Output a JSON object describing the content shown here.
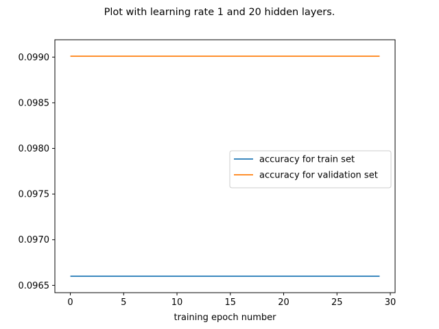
{
  "chart_data": {
    "type": "line",
    "title": "Plot with learning rate 1 and 20 hidden layers.",
    "xlabel": "training epoch number",
    "ylabel": "",
    "xlim": [
      -1.45,
      30.45
    ],
    "ylim": [
      0.09642,
      0.09919
    ],
    "x_ticks": [
      0,
      5,
      10,
      15,
      20,
      25,
      30
    ],
    "x_tick_labels": [
      "0",
      "5",
      "10",
      "15",
      "20",
      "25",
      "30"
    ],
    "y_ticks": [
      0.0965,
      0.097,
      0.0975,
      0.098,
      0.0985,
      0.099
    ],
    "y_tick_labels": [
      "0.0965",
      "0.0970",
      "0.0975",
      "0.0980",
      "0.0985",
      "0.0990"
    ],
    "grid": false,
    "legend_position": "center-right",
    "series": [
      {
        "name": "accuracy for train set",
        "color": "#1f77b4",
        "x": [
          0,
          1,
          2,
          3,
          4,
          5,
          6,
          7,
          8,
          9,
          10,
          11,
          12,
          13,
          14,
          15,
          16,
          17,
          18,
          19,
          20,
          21,
          22,
          23,
          24,
          25,
          26,
          27,
          28,
          29
        ],
        "y": [
          0.0966,
          0.0966,
          0.0966,
          0.0966,
          0.0966,
          0.0966,
          0.0966,
          0.0966,
          0.0966,
          0.0966,
          0.0966,
          0.0966,
          0.0966,
          0.0966,
          0.0966,
          0.0966,
          0.0966,
          0.0966,
          0.0966,
          0.0966,
          0.0966,
          0.0966,
          0.0966,
          0.0966,
          0.0966,
          0.0966,
          0.0966,
          0.0966,
          0.0966,
          0.0966
        ]
      },
      {
        "name": "accuracy for validation set",
        "color": "#ff7f0e",
        "x": [
          0,
          1,
          2,
          3,
          4,
          5,
          6,
          7,
          8,
          9,
          10,
          11,
          12,
          13,
          14,
          15,
          16,
          17,
          18,
          19,
          20,
          21,
          22,
          23,
          24,
          25,
          26,
          27,
          28,
          29
        ],
        "y": [
          0.09901,
          0.09901,
          0.09901,
          0.09901,
          0.09901,
          0.09901,
          0.09901,
          0.09901,
          0.09901,
          0.09901,
          0.09901,
          0.09901,
          0.09901,
          0.09901,
          0.09901,
          0.09901,
          0.09901,
          0.09901,
          0.09901,
          0.09901,
          0.09901,
          0.09901,
          0.09901,
          0.09901,
          0.09901,
          0.09901,
          0.09901,
          0.09901,
          0.09901,
          0.09901
        ]
      }
    ]
  }
}
